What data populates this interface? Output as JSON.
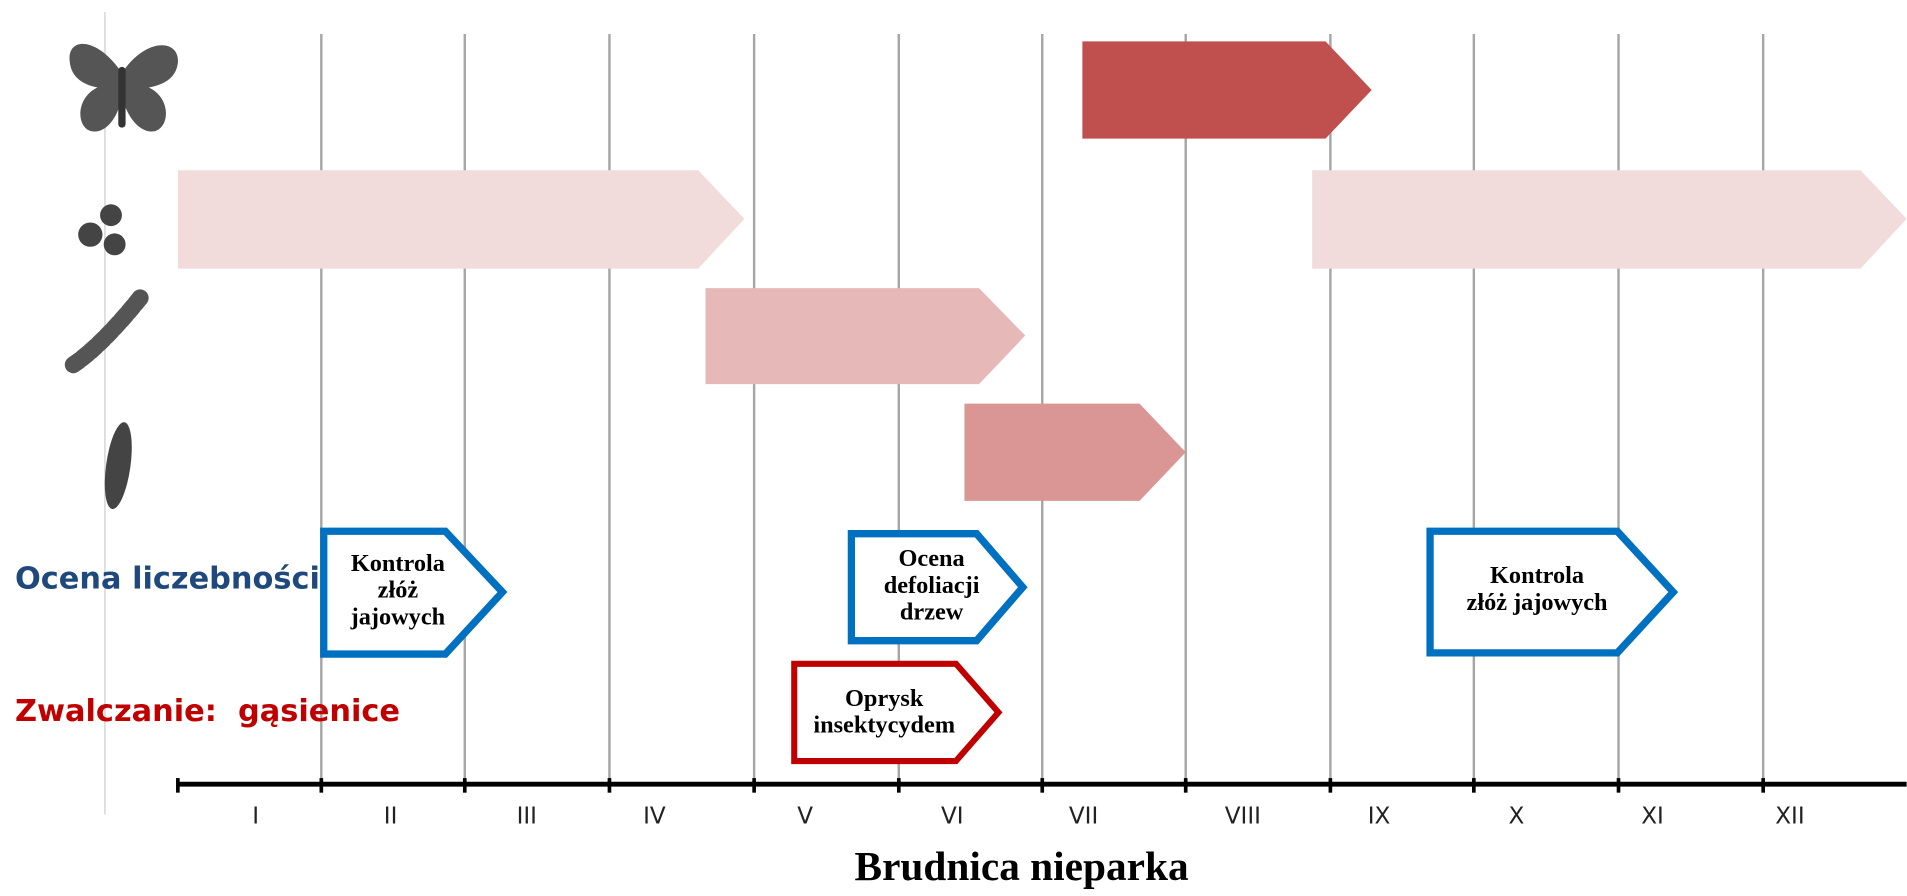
{
  "title": "Brudnica nieparka",
  "row_labels": {
    "monitoring": "Ocena liczebności",
    "control": "Zwalczanie:  gąsienice"
  },
  "months": [
    "I",
    "II",
    "III",
    "IV",
    "V",
    "VI",
    "VII",
    "VIII",
    "IX",
    "X",
    "XI",
    "XII"
  ],
  "activities": [
    {
      "lines": [
        "Kontrola",
        "złóż",
        "jajowych"
      ]
    },
    {
      "lines": [
        "Ocena",
        "defoliacji",
        "drzew"
      ]
    },
    {
      "lines": [
        "Kontrola",
        "złóż jajowych"
      ]
    },
    {
      "lines": [
        "Oprysk",
        "insektycydem"
      ]
    }
  ]
}
